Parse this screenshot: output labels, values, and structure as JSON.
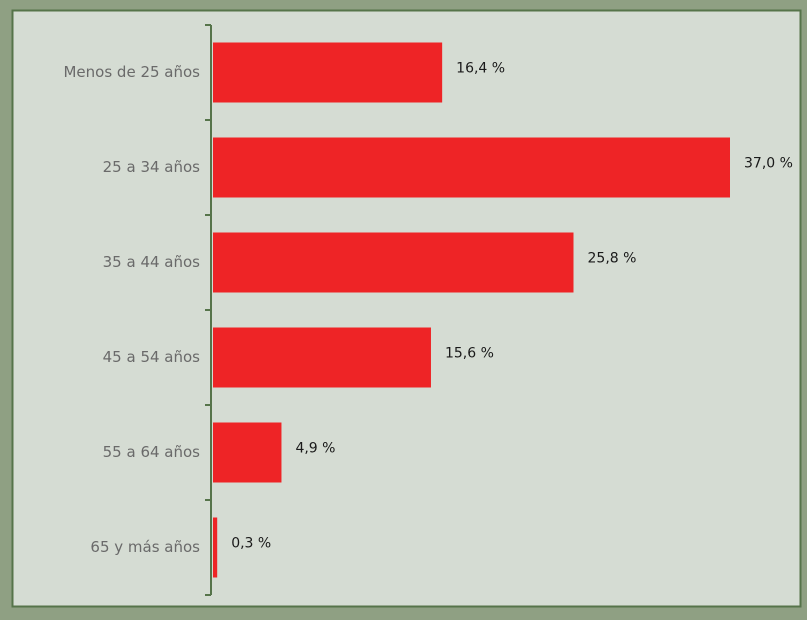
{
  "chart_data": {
    "type": "bar",
    "orientation": "horizontal",
    "categories": [
      "Menos de 25 años",
      "25 a 34 años",
      "35 a 44 años",
      "45 a 54 años",
      "55 a 64 años",
      "65 y más años"
    ],
    "values": [
      16.4,
      37.0,
      25.8,
      15.6,
      4.9,
      0.3
    ],
    "value_labels": [
      "16,4 %",
      "37,0 %",
      "25,8 %",
      "15,6 %",
      "4,9 %",
      "0,3 %"
    ],
    "color": "#ee2426"
  }
}
